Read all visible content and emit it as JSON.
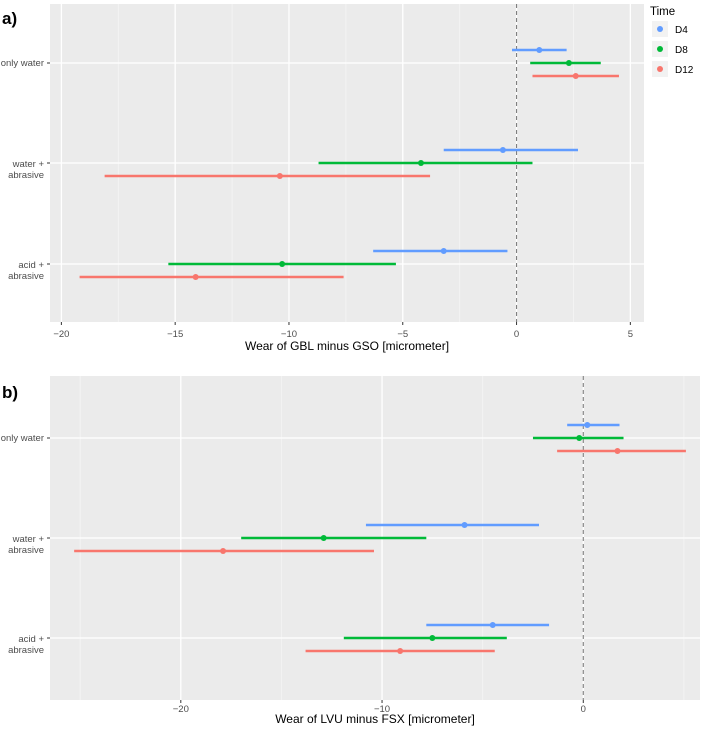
{
  "legend": {
    "title": "Time",
    "items": [
      {
        "name": "D4",
        "color": "#619CFF"
      },
      {
        "name": "D8",
        "color": "#00BA38"
      },
      {
        "name": "D12",
        "color": "#F8766D"
      }
    ]
  },
  "chart_data": [
    {
      "type": "errorbar",
      "panel_label": "a)",
      "title": "",
      "xlabel": "Wear of GBL minus GSO [micrometer]",
      "ylabel": "",
      "xlim": [
        -20.5,
        5.6
      ],
      "xticks": [
        -20,
        -15,
        -10,
        -5,
        0,
        5
      ],
      "xtick_labels": [
        "−20",
        "−15",
        "−10",
        "−5",
        "0",
        "5"
      ],
      "reference_line": 0,
      "categories": [
        {
          "line1": "only water",
          "line2": ""
        },
        {
          "line1": "water +",
          "line2": "abrasive"
        },
        {
          "line1": "acid +",
          "line2": "abrasive"
        }
      ],
      "series": [
        {
          "name": "D4",
          "points": [
            {
              "est": 1.0,
              "lo": -0.2,
              "hi": 2.2
            },
            {
              "est": -0.6,
              "lo": -3.2,
              "hi": 2.7
            },
            {
              "est": -3.2,
              "lo": -6.3,
              "hi": -0.4
            }
          ]
        },
        {
          "name": "D8",
          "points": [
            {
              "est": 2.3,
              "lo": 0.6,
              "hi": 3.7
            },
            {
              "est": -4.2,
              "lo": -8.7,
              "hi": 0.7
            },
            {
              "est": -10.3,
              "lo": -15.3,
              "hi": -5.3
            }
          ]
        },
        {
          "name": "D12",
          "points": [
            {
              "est": 2.6,
              "lo": 0.7,
              "hi": 4.5
            },
            {
              "est": -10.4,
              "lo": -18.1,
              "hi": -3.8
            }
          ]
        }
      ],
      "series_d12_extra": {
        "est": -14.1,
        "lo": -19.2,
        "hi": -7.6
      }
    },
    {
      "type": "errorbar",
      "panel_label": "b)",
      "title": "",
      "xlabel": "Wear of LVU minus FSX [micrometer]",
      "ylabel": "",
      "xlim": [
        -26.5,
        5.8
      ],
      "xticks": [
        -20,
        -10,
        0
      ],
      "xtick_labels": [
        "−20",
        "−10",
        "0"
      ],
      "reference_line": 0,
      "categories": [
        {
          "line1": "only water",
          "line2": ""
        },
        {
          "line1": "water +",
          "line2": "abrasive"
        },
        {
          "line1": "acid +",
          "line2": "abrasive"
        }
      ],
      "series": [
        {
          "name": "D4",
          "points": [
            {
              "est": 0.2,
              "lo": -0.8,
              "hi": 1.8
            },
            {
              "est": -5.9,
              "lo": -10.8,
              "hi": -2.2
            },
            {
              "est": -4.5,
              "lo": -7.8,
              "hi": -1.7
            }
          ]
        },
        {
          "name": "D8",
          "points": [
            {
              "est": -0.2,
              "lo": -2.5,
              "hi": 2.0
            },
            {
              "est": -12.9,
              "lo": -17.0,
              "hi": -7.8
            },
            {
              "est": -7.5,
              "lo": -11.9,
              "hi": -3.8
            }
          ]
        },
        {
          "name": "D12",
          "points": [
            {
              "est": 1.7,
              "lo": -1.3,
              "hi": 5.1
            },
            {
              "est": -17.9,
              "lo": -25.3,
              "hi": -10.4
            },
            {
              "est": -9.1,
              "lo": -13.8,
              "hi": -4.4
            }
          ]
        }
      ]
    }
  ]
}
